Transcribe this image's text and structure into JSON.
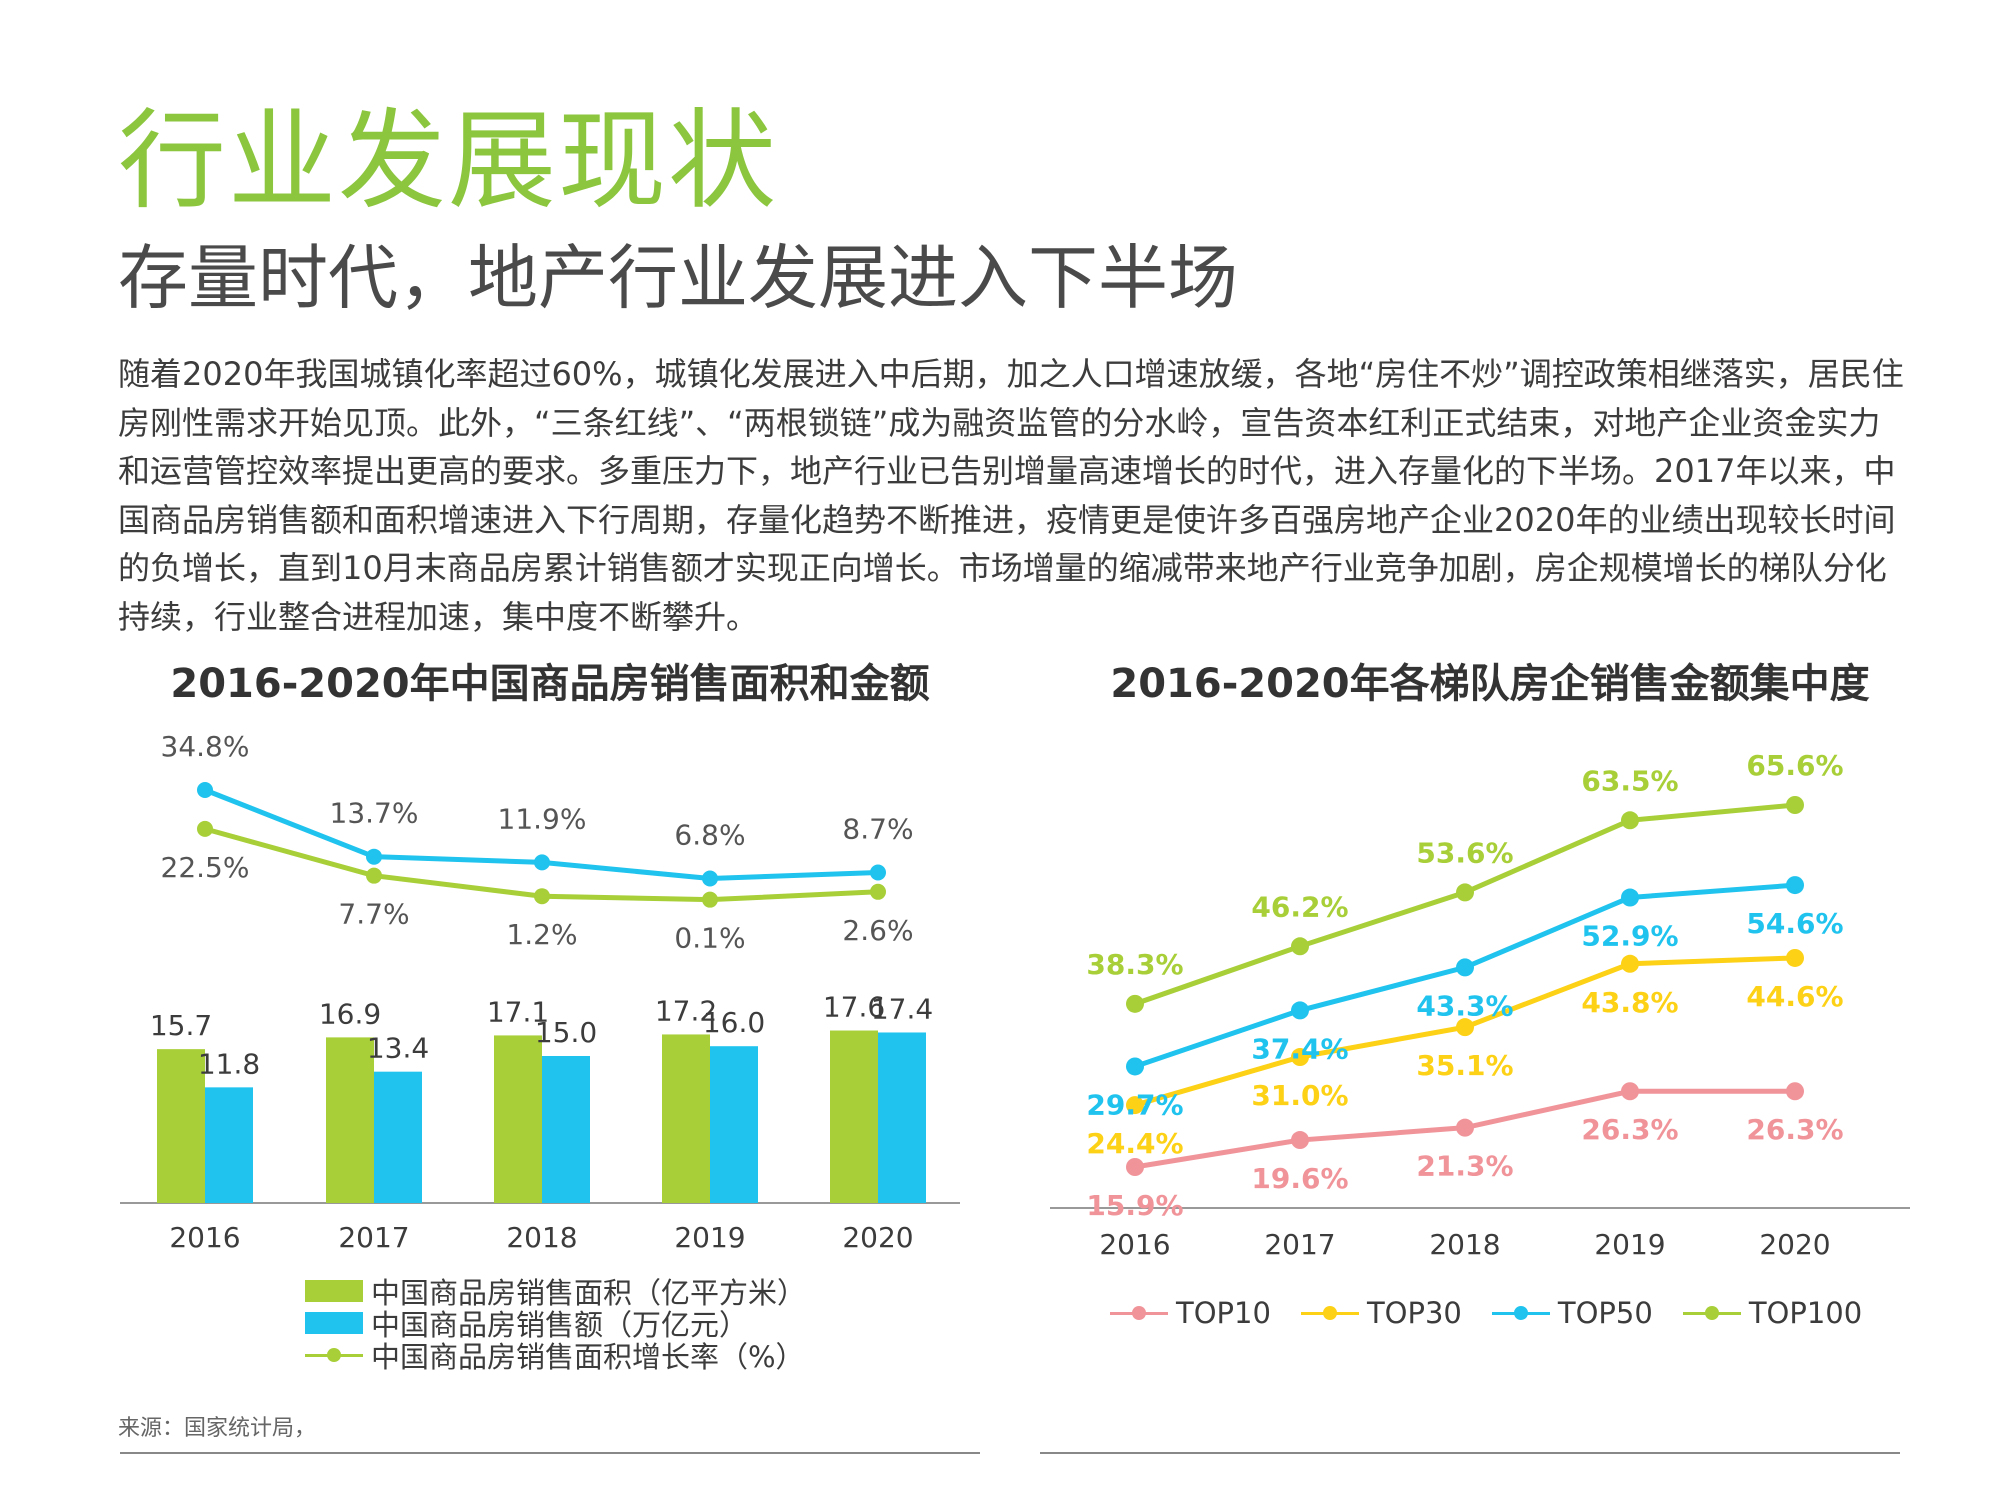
{
  "page": {
    "title": "行业发展现状",
    "subtitle": "存量时代，地产行业发展进入下半场",
    "intro": "随着2020年我国城镇化率超过60%，城镇化发展进入中后期，加之人口增速放缓，各地“房住不炒”调控政策相继落实，居民住房刚性需求开始见顶。此外，“三条红线”、“两根锁链”成为融资监管的分水岭，宣告资本红利正式结束，对地产企业资金实力和运营管控效率提出更高的要求。多重压力下，地产行业已告别增量高速增长的时代，进入存量化的下半场。2017年以来，中国商品房销售额和面积增速进入下行周期，存量化趋势不断推进，疫情更是使许多百强房地产企业2020年的业绩出现较长时间的负增长，直到10月末商品房累计销售额才实现正向增长。市场增量的缩减带来地产行业竞争加剧，房企规模增长的梯队分化持续，行业整合进程加速，集中度不断攀升。",
    "source": "来源：国家统计局，"
  },
  "colors": {
    "green": "#a8cf38",
    "blue": "#1fc3ee",
    "title_green": "#8cc63f",
    "top10": "#f0949a",
    "top30": "#fcd116",
    "top50": "#1fc3ee",
    "top100": "#a8cf38"
  },
  "chart_data": [
    {
      "type": "bar",
      "title": "2016-2020年中国商品房销售面积和金额",
      "categories": [
        "2016",
        "2017",
        "2018",
        "2019",
        "2020"
      ],
      "series": [
        {
          "name": "中国商品房销售面积（亿平方米）",
          "type": "bar",
          "color": "#a8cf38",
          "values": [
            15.7,
            16.9,
            17.1,
            17.2,
            17.6
          ]
        },
        {
          "name": "中国商品房销售额（万亿元）",
          "type": "bar",
          "color": "#1fc3ee",
          "values": [
            11.8,
            13.4,
            15.0,
            16.0,
            17.4
          ]
        },
        {
          "name": "中国商品房销售面积增长率（%）",
          "type": "line",
          "color": "#a8cf38",
          "values": [
            22.5,
            7.7,
            1.2,
            0.1,
            2.6
          ],
          "labels": [
            "22.5%",
            "7.7%",
            "1.2%",
            "0.1%",
            "2.6%"
          ]
        },
        {
          "type": "line",
          "color": "#1fc3ee",
          "values": [
            34.8,
            13.7,
            11.9,
            6.8,
            8.7
          ],
          "labels": [
            "34.8%",
            "13.7%",
            "11.9%",
            "6.8%",
            "8.7%"
          ]
        }
      ],
      "legend": [
        "中国商品房销售面积（亿平方米）",
        "中国商品房销售额（万亿元）",
        "中国商品房销售面积增长率（%）"
      ],
      "legend_position": "bottom"
    },
    {
      "type": "line",
      "title": "2016-2020年各梯队房企销售金额集中度",
      "categories": [
        "2016",
        "2017",
        "2018",
        "2019",
        "2020"
      ],
      "series": [
        {
          "name": "TOP10",
          "color": "#f0949a",
          "values": [
            15.9,
            19.6,
            21.3,
            26.3,
            26.3
          ],
          "labels": [
            "15.9%",
            "19.6%",
            "21.3%",
            "26.3%",
            "26.3%"
          ]
        },
        {
          "name": "TOP30",
          "color": "#fcd116",
          "values": [
            24.4,
            31.0,
            35.1,
            43.8,
            44.6
          ],
          "labels": [
            "24.4%",
            "31.0%",
            "35.1%",
            "43.8%",
            "44.6%"
          ]
        },
        {
          "name": "TOP50",
          "color": "#1fc3ee",
          "values": [
            29.7,
            37.4,
            43.3,
            52.9,
            54.6
          ],
          "labels": [
            "29.7%",
            "37.4%",
            "43.3%",
            "52.9%",
            "54.6%"
          ]
        },
        {
          "name": "TOP100",
          "color": "#a8cf38",
          "values": [
            38.3,
            46.2,
            53.6,
            63.5,
            65.6
          ],
          "labels": [
            "38.3%",
            "46.2%",
            "53.6%",
            "63.5%",
            "65.6%"
          ]
        }
      ],
      "legend_position": "bottom"
    }
  ]
}
